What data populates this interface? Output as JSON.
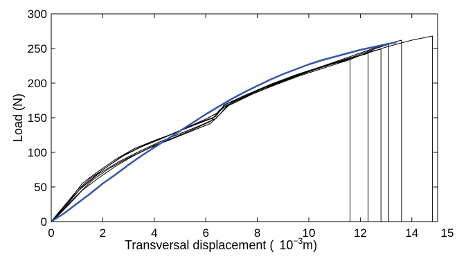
{
  "chart_data": {
    "type": "line",
    "title": "",
    "xlabel": "Transversal displacement (",
    "xlabel_unit_base": "10",
    "xlabel_unit_exp": "−3",
    "xlabel_unit_suffix": "m)",
    "ylabel": "Load (N)",
    "xlim": [
      0,
      15
    ],
    "ylim": [
      0,
      300
    ],
    "grid": false,
    "x_ticks": [
      "0",
      "2",
      "4",
      "6",
      "8",
      "10",
      "12",
      "14",
      "15"
    ],
    "y_ticks": [
      "0",
      "50",
      "100",
      "150",
      "200",
      "250",
      "300"
    ],
    "series": [
      {
        "color": "#3355aa",
        "points": [
          [
            0,
            0
          ],
          [
            0.5,
            12
          ],
          [
            1,
            26
          ],
          [
            1.5,
            40
          ],
          [
            2,
            55
          ],
          [
            2.5,
            68
          ],
          [
            3,
            82
          ],
          [
            3.5,
            95
          ],
          [
            4,
            107
          ],
          [
            4.5,
            119
          ],
          [
            5,
            131
          ],
          [
            5.5,
            143
          ],
          [
            6,
            155
          ],
          [
            6.5,
            166
          ],
          [
            7,
            177
          ],
          [
            7.5,
            187
          ],
          [
            8,
            196
          ],
          [
            8.5,
            205
          ],
          [
            9,
            213
          ],
          [
            9.5,
            220
          ],
          [
            10,
            227
          ],
          [
            10.5,
            233
          ],
          [
            11,
            238
          ],
          [
            11.5,
            243
          ],
          [
            12,
            248
          ],
          [
            12.5,
            252
          ],
          [
            13,
            256
          ],
          [
            13.4,
            259
          ]
        ]
      },
      {
        "color": "#000000",
        "points": [
          [
            0,
            0
          ],
          [
            0.3,
            10
          ],
          [
            0.7,
            25
          ],
          [
            1.2,
            45
          ],
          [
            1.8,
            62
          ],
          [
            2.5,
            80
          ],
          [
            3.2,
            95
          ],
          [
            4,
            110
          ],
          [
            4.8,
            122
          ],
          [
            5.5,
            133
          ],
          [
            6.2,
            145
          ],
          [
            6.5,
            160
          ],
          [
            6.8,
            170
          ],
          [
            7.5,
            182
          ],
          [
            8.5,
            198
          ],
          [
            9.5,
            212
          ],
          [
            10.5,
            224
          ],
          [
            11.5,
            233
          ],
          [
            11.6,
            234
          ],
          [
            11.6,
            0
          ]
        ]
      },
      {
        "color": "#000000",
        "points": [
          [
            0,
            0
          ],
          [
            0.3,
            14
          ],
          [
            0.8,
            35
          ],
          [
            1.2,
            55
          ],
          [
            1.8,
            72
          ],
          [
            2.5,
            90
          ],
          [
            3.2,
            105
          ],
          [
            4,
            117
          ],
          [
            4.8,
            128
          ],
          [
            5.6,
            140
          ],
          [
            6.3,
            150
          ],
          [
            6.6,
            163
          ],
          [
            7.2,
            175
          ],
          [
            8.2,
            192
          ],
          [
            9.2,
            206
          ],
          [
            10.2,
            219
          ],
          [
            11.2,
            231
          ],
          [
            12.3,
            243
          ],
          [
            12.3,
            0
          ]
        ]
      },
      {
        "color": "#000000",
        "points": [
          [
            0,
            0
          ],
          [
            0.4,
            18
          ],
          [
            1,
            45
          ],
          [
            1.5,
            62
          ],
          [
            2.2,
            80
          ],
          [
            2.8,
            96
          ],
          [
            3.6,
            110
          ],
          [
            4.4,
            122
          ],
          [
            5.2,
            135
          ],
          [
            6,
            148
          ],
          [
            6.5,
            158
          ],
          [
            6.8,
            168
          ],
          [
            7.6,
            181
          ],
          [
            8.6,
            196
          ],
          [
            9.6,
            210
          ],
          [
            10.6,
            222
          ],
          [
            11.6,
            234
          ],
          [
            12.4,
            246
          ],
          [
            12.8,
            249
          ],
          [
            12.8,
            0
          ]
        ]
      },
      {
        "color": "#000000",
        "points": [
          [
            0,
            0
          ],
          [
            0.5,
            22
          ],
          [
            1.2,
            50
          ],
          [
            2,
            75
          ],
          [
            2.8,
            95
          ],
          [
            3.5,
            108
          ],
          [
            4.3,
            120
          ],
          [
            5.1,
            133
          ],
          [
            5.9,
            145
          ],
          [
            6.4,
            152
          ],
          [
            6.7,
            168
          ],
          [
            7.5,
            182
          ],
          [
            8.5,
            197
          ],
          [
            9.5,
            211
          ],
          [
            10.5,
            224
          ],
          [
            11.5,
            237
          ],
          [
            12.5,
            250
          ],
          [
            13,
            256
          ],
          [
            13.6,
            262
          ],
          [
            13.6,
            0
          ]
        ]
      },
      {
        "color": "#000000",
        "points": [
          [
            0,
            0
          ],
          [
            0.4,
            15
          ],
          [
            1,
            38
          ],
          [
            1.6,
            60
          ],
          [
            2.3,
            78
          ],
          [
            3,
            92
          ],
          [
            3.8,
            106
          ],
          [
            4.6,
            118
          ],
          [
            5.4,
            130
          ],
          [
            6.2,
            142
          ],
          [
            6.6,
            157
          ],
          [
            7,
            172
          ],
          [
            8,
            189
          ],
          [
            9,
            204
          ],
          [
            10,
            217
          ],
          [
            11,
            229
          ],
          [
            12,
            240
          ],
          [
            13,
            252
          ],
          [
            14,
            262
          ],
          [
            14.8,
            268
          ],
          [
            14.8,
            0
          ]
        ]
      },
      {
        "color": "#000000",
        "points": [
          [
            0,
            0
          ],
          [
            0.5,
            20
          ],
          [
            1.1,
            46
          ],
          [
            1.8,
            68
          ],
          [
            2.6,
            86
          ],
          [
            3.4,
            101
          ],
          [
            4.2,
            115
          ],
          [
            5,
            127
          ],
          [
            5.8,
            139
          ],
          [
            6.4,
            149
          ],
          [
            6.8,
            166
          ],
          [
            7.8,
            184
          ],
          [
            8.8,
            200
          ],
          [
            9.8,
            214
          ],
          [
            10.8,
            227
          ],
          [
            11.8,
            239
          ],
          [
            12.6,
            250
          ],
          [
            13.1,
            256
          ],
          [
            13.1,
            0
          ]
        ]
      }
    ]
  }
}
